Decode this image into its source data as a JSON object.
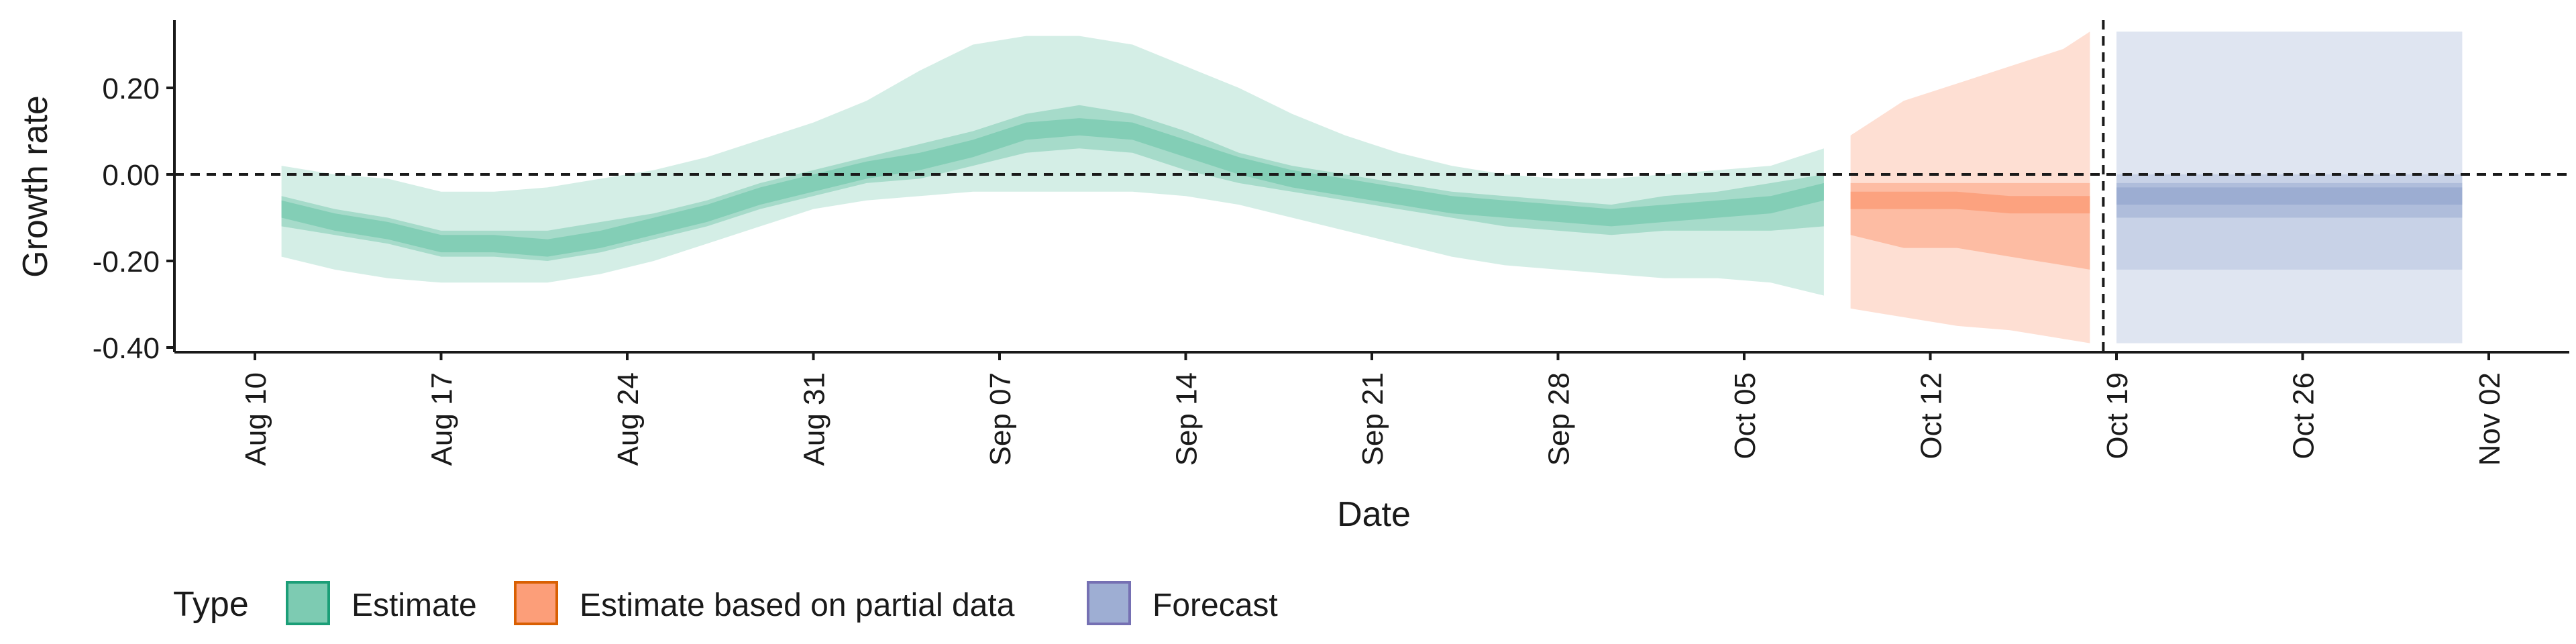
{
  "chart_data": {
    "type": "area",
    "xlabel": "Date",
    "ylabel": "Growth rate",
    "ylim": [
      -0.4,
      0.4
    ],
    "y_ticks": [
      {
        "value": -0.4,
        "label": "-0.40"
      },
      {
        "value": -0.2,
        "label": "-0.20"
      },
      {
        "value": 0.0,
        "label": "0.00"
      },
      {
        "value": 0.2,
        "label": "0.20"
      }
    ],
    "x_start": "2020-08-10",
    "x_end": "2020-11-02",
    "x_ticks": [
      {
        "date": "2020-08-10",
        "label": "Aug 10"
      },
      {
        "date": "2020-08-17",
        "label": "Aug 17"
      },
      {
        "date": "2020-08-24",
        "label": "Aug 24"
      },
      {
        "date": "2020-08-31",
        "label": "Aug 31"
      },
      {
        "date": "2020-09-07",
        "label": "Sep 07"
      },
      {
        "date": "2020-09-14",
        "label": "Sep 14"
      },
      {
        "date": "2020-09-21",
        "label": "Sep 21"
      },
      {
        "date": "2020-09-28",
        "label": "Sep 28"
      },
      {
        "date": "2020-10-05",
        "label": "Oct 05"
      },
      {
        "date": "2020-10-12",
        "label": "Oct 12"
      },
      {
        "date": "2020-10-19",
        "label": "Oct 19"
      },
      {
        "date": "2020-10-26",
        "label": "Oct 26"
      },
      {
        "date": "2020-11-02",
        "label": "Nov 02"
      }
    ],
    "reference_lines": {
      "horizontal_y": 0.0,
      "vertical_date": "2020-10-18"
    },
    "grid": false,
    "legend_title": "Type",
    "legend_position": "bottom-left",
    "series": [
      {
        "name": "Estimate",
        "color": "#1b9e77",
        "fill": "#66c2a5",
        "dates": [
          "2020-08-11",
          "2020-08-13",
          "2020-08-15",
          "2020-08-17",
          "2020-08-19",
          "2020-08-21",
          "2020-08-23",
          "2020-08-25",
          "2020-08-27",
          "2020-08-29",
          "2020-08-31",
          "2020-09-02",
          "2020-09-04",
          "2020-09-06",
          "2020-09-08",
          "2020-09-10",
          "2020-09-12",
          "2020-09-14",
          "2020-09-16",
          "2020-09-18",
          "2020-09-20",
          "2020-09-22",
          "2020-09-24",
          "2020-09-26",
          "2020-09-28",
          "2020-09-30",
          "2020-10-02",
          "2020-10-04",
          "2020-10-06",
          "2020-10-08"
        ],
        "median": [
          -0.08,
          -0.11,
          -0.13,
          -0.16,
          -0.16,
          -0.17,
          -0.15,
          -0.12,
          -0.09,
          -0.05,
          -0.02,
          0.01,
          0.03,
          0.06,
          0.1,
          0.11,
          0.1,
          0.06,
          0.02,
          -0.01,
          -0.03,
          -0.05,
          -0.07,
          -0.08,
          -0.09,
          -0.1,
          -0.09,
          -0.08,
          -0.07,
          -0.04
        ],
        "ci_50": [
          [
            -0.12,
            -0.05
          ],
          [
            -0.14,
            -0.08
          ],
          [
            -0.16,
            -0.1
          ],
          [
            -0.19,
            -0.13
          ],
          [
            -0.19,
            -0.13
          ],
          [
            -0.2,
            -0.13
          ],
          [
            -0.18,
            -0.11
          ],
          [
            -0.15,
            -0.09
          ],
          [
            -0.12,
            -0.06
          ],
          [
            -0.08,
            -0.02
          ],
          [
            -0.05,
            0.01
          ],
          [
            -0.02,
            0.04
          ],
          [
            -0.01,
            0.07
          ],
          [
            0.02,
            0.1
          ],
          [
            0.05,
            0.14
          ],
          [
            0.06,
            0.16
          ],
          [
            0.05,
            0.14
          ],
          [
            0.01,
            0.1
          ],
          [
            -0.02,
            0.05
          ],
          [
            -0.04,
            0.02
          ],
          [
            -0.06,
            0.0
          ],
          [
            -0.08,
            -0.02
          ],
          [
            -0.1,
            -0.04
          ],
          [
            -0.12,
            -0.05
          ],
          [
            -0.13,
            -0.06
          ],
          [
            -0.14,
            -0.07
          ],
          [
            -0.13,
            -0.05
          ],
          [
            -0.13,
            -0.04
          ],
          [
            -0.13,
            -0.02
          ],
          [
            -0.12,
            0.0
          ]
        ],
        "ci_90": [
          [
            -0.19,
            0.02
          ],
          [
            -0.22,
            0.0
          ],
          [
            -0.24,
            -0.01
          ],
          [
            -0.25,
            -0.04
          ],
          [
            -0.25,
            -0.04
          ],
          [
            -0.25,
            -0.03
          ],
          [
            -0.23,
            -0.01
          ],
          [
            -0.2,
            0.01
          ],
          [
            -0.16,
            0.04
          ],
          [
            -0.12,
            0.08
          ],
          [
            -0.08,
            0.12
          ],
          [
            -0.06,
            0.17
          ],
          [
            -0.05,
            0.24
          ],
          [
            -0.04,
            0.3
          ],
          [
            -0.04,
            0.32
          ],
          [
            -0.04,
            0.32
          ],
          [
            -0.04,
            0.3
          ],
          [
            -0.05,
            0.25
          ],
          [
            -0.07,
            0.2
          ],
          [
            -0.1,
            0.14
          ],
          [
            -0.13,
            0.09
          ],
          [
            -0.16,
            0.05
          ],
          [
            -0.19,
            0.02
          ],
          [
            -0.21,
            0.0
          ],
          [
            -0.22,
            -0.01
          ],
          [
            -0.23,
            -0.01
          ],
          [
            -0.24,
            0.0
          ],
          [
            -0.24,
            0.01
          ],
          [
            -0.25,
            0.02
          ],
          [
            -0.28,
            0.06
          ]
        ]
      },
      {
        "name": "Estimate based on partial data",
        "color": "#d95f02",
        "fill": "#fc8d62",
        "dates": [
          "2020-10-09",
          "2020-10-11",
          "2020-10-13",
          "2020-10-15",
          "2020-10-17",
          "2020-10-18"
        ],
        "median": [
          -0.06,
          -0.06,
          -0.06,
          -0.07,
          -0.07,
          -0.07
        ],
        "ci_50": [
          [
            -0.14,
            -0.02
          ],
          [
            -0.17,
            -0.02
          ],
          [
            -0.17,
            -0.02
          ],
          [
            -0.19,
            -0.02
          ],
          [
            -0.21,
            -0.02
          ],
          [
            -0.22,
            -0.02
          ]
        ],
        "ci_90": [
          [
            -0.31,
            0.09
          ],
          [
            -0.33,
            0.17
          ],
          [
            -0.35,
            0.21
          ],
          [
            -0.36,
            0.25
          ],
          [
            -0.38,
            0.29
          ],
          [
            -0.39,
            0.33
          ]
        ]
      },
      {
        "name": "Forecast",
        "color": "#7570b3",
        "fill": "#8da0cb",
        "dates": [
          "2020-10-19",
          "2020-11-01"
        ],
        "median": [
          -0.05,
          -0.05
        ],
        "ci_50": [
          [
            -0.1,
            -0.02
          ],
          [
            -0.1,
            -0.02
          ]
        ],
        "ci_90": [
          [
            -0.22,
            0.0
          ],
          [
            -0.22,
            0.0
          ]
        ],
        "ci_outer": [
          [
            -0.39,
            0.33
          ],
          [
            -0.39,
            0.33
          ]
        ]
      }
    ]
  }
}
